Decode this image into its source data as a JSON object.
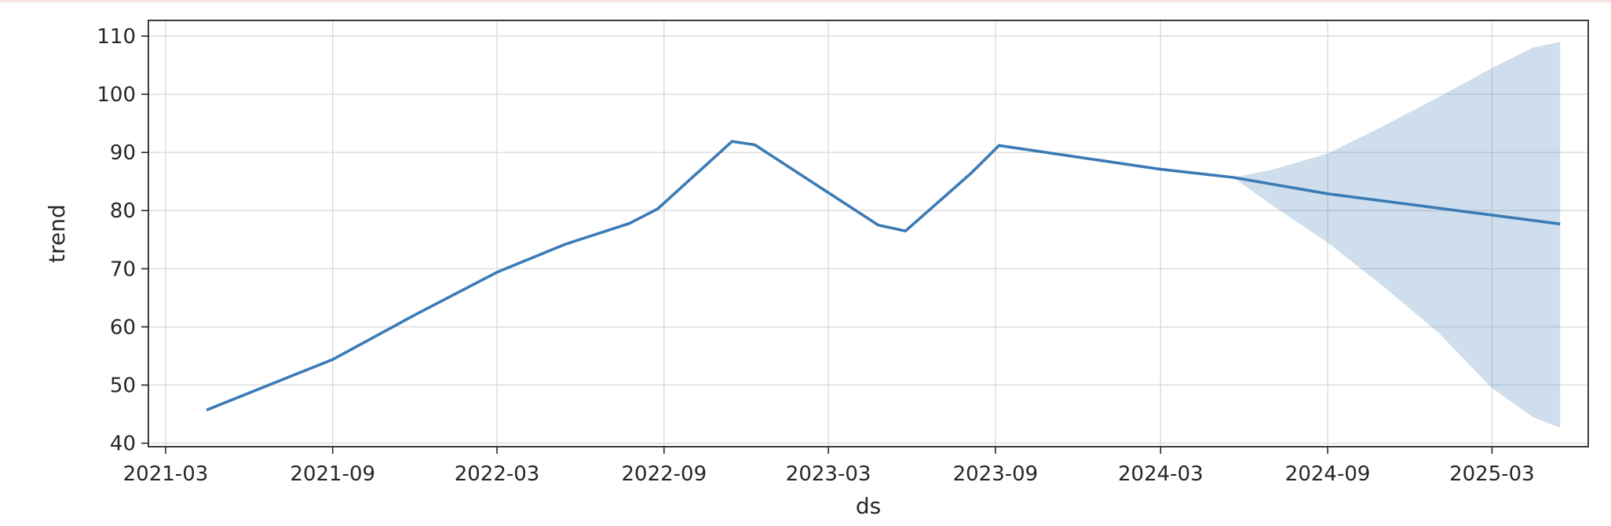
{
  "chart_data": {
    "type": "line",
    "title": "",
    "xlabel": "ds",
    "ylabel": "trend",
    "x_axis_type": "date",
    "xlim": [
      "2021-02-10",
      "2025-06-15"
    ],
    "ylim": [
      39.4,
      112.7
    ],
    "x_ticks": [
      "2021-03-01",
      "2021-09-01",
      "2022-03-01",
      "2022-09-01",
      "2023-03-01",
      "2023-09-01",
      "2024-03-01",
      "2024-09-01",
      "2025-03-01"
    ],
    "x_tick_labels": [
      "2021-03",
      "2021-09",
      "2022-03",
      "2022-09",
      "2023-03",
      "2023-09",
      "2024-03",
      "2024-09",
      "2025-03"
    ],
    "y_ticks": [
      40,
      50,
      60,
      70,
      80,
      90,
      100,
      110
    ],
    "y_tick_labels": [
      "40",
      "50",
      "60",
      "70",
      "80",
      "90",
      "100",
      "110"
    ],
    "grid": true,
    "colors": {
      "line": "#3b7bb5",
      "band": "#3b7bb5",
      "axes": "#262626",
      "grid": "#dcdcdc"
    },
    "series": [
      {
        "x": [
          "2021-04-15",
          "2021-09-01",
          "2021-12-01",
          "2022-03-01",
          "2022-05-15",
          "2022-07-25",
          "2022-08-25",
          "2022-11-15",
          "2022-12-10",
          "2023-04-25",
          "2023-05-25",
          "2023-08-05",
          "2023-09-05",
          "2024-03-01",
          "2024-05-20",
          "2024-09-01",
          "2025-05-15"
        ],
        "values": [
          45.7,
          54.4,
          62.1,
          69.4,
          74.2,
          77.8,
          80.3,
          91.9,
          91.3,
          77.5,
          76.5,
          86.4,
          91.2,
          87.1,
          85.7,
          82.9,
          77.7
        ]
      }
    ],
    "uncertainty_band": {
      "x": [
        "2024-05-20",
        "2024-07-01",
        "2024-09-01",
        "2024-11-01",
        "2025-01-01",
        "2025-03-01",
        "2025-04-15",
        "2025-05-15"
      ],
      "lower": [
        85.7,
        81.0,
        74.5,
        67.0,
        59.0,
        49.5,
        44.5,
        42.7
      ],
      "upper": [
        85.7,
        87.0,
        89.8,
        94.5,
        99.5,
        104.5,
        108.0,
        109.0
      ]
    }
  }
}
